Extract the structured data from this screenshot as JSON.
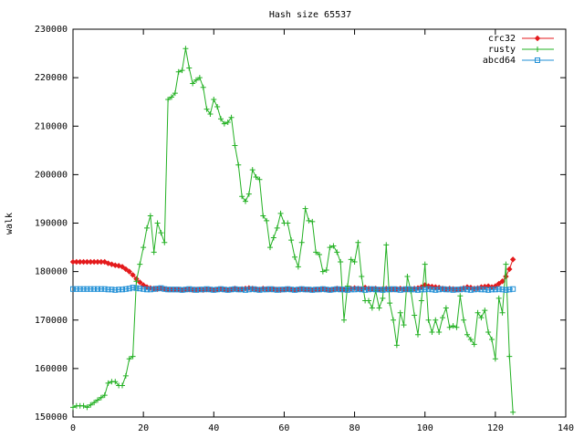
{
  "chart_data": {
    "type": "line",
    "title": "Hash size 65537",
    "y_label": "walk",
    "x": [
      0,
      1,
      2,
      3,
      4,
      5,
      6,
      7,
      8,
      9,
      10,
      11,
      12,
      13,
      14,
      15,
      16,
      17,
      18,
      19,
      20,
      21,
      22,
      23,
      24,
      25,
      26,
      27,
      28,
      29,
      30,
      31,
      32,
      33,
      34,
      35,
      36,
      37,
      38,
      39,
      40,
      41,
      42,
      43,
      44,
      45,
      46,
      47,
      48,
      49,
      50,
      51,
      52,
      53,
      54,
      55,
      56,
      57,
      58,
      59,
      60,
      61,
      62,
      63,
      64,
      65,
      66,
      67,
      68,
      69,
      70,
      71,
      72,
      73,
      74,
      75,
      76,
      77,
      78,
      79,
      80,
      81,
      82,
      83,
      84,
      85,
      86,
      87,
      88,
      89,
      90,
      91,
      92,
      93,
      94,
      95,
      96,
      97,
      98,
      99,
      100,
      101,
      102,
      103,
      104,
      105,
      106,
      107,
      108,
      109,
      110,
      111,
      112,
      113,
      114,
      115,
      116,
      117,
      118,
      119,
      120,
      121,
      122,
      123,
      124,
      125
    ],
    "series": [
      {
        "name": "crc32",
        "color": "#e41a1c",
        "marker": "diamond",
        "values": [
          182000,
          182000,
          182000,
          182000,
          182000,
          182000,
          182000,
          182000,
          182000,
          182000,
          181700,
          181500,
          181300,
          181200,
          181000,
          180500,
          180000,
          179300,
          178500,
          177800,
          177200,
          176800,
          176600,
          176500,
          176400,
          176500,
          176400,
          176300,
          176300,
          176300,
          176300,
          176200,
          176300,
          176300,
          176200,
          176300,
          176300,
          176200,
          176300,
          176300,
          176200,
          176300,
          176400,
          176300,
          176200,
          176300,
          176500,
          176300,
          176400,
          176500,
          176600,
          176500,
          176400,
          176300,
          176500,
          176400,
          176300,
          176400,
          176300,
          176200,
          176300,
          176400,
          176300,
          176200,
          176300,
          176400,
          176300,
          176300,
          176200,
          176300,
          176300,
          176400,
          176300,
          176200,
          176300,
          176500,
          176400,
          176300,
          176400,
          176500,
          176600,
          176500,
          176400,
          176700,
          176500,
          176400,
          176500,
          176300,
          176400,
          176500,
          176400,
          176300,
          176400,
          176500,
          176400,
          176300,
          176400,
          176500,
          176600,
          176800,
          177200,
          177000,
          176900,
          176800,
          176700,
          176500,
          176400,
          176500,
          176400,
          176300,
          176400,
          176600,
          176800,
          176700,
          176500,
          176600,
          176800,
          176900,
          177000,
          176800,
          177000,
          177500,
          178000,
          179000,
          180500,
          182500
        ]
      },
      {
        "name": "rusty",
        "color": "#22b022",
        "marker": "plus",
        "values": [
          152000,
          152300,
          152300,
          152300,
          152000,
          152500,
          153000,
          153500,
          154000,
          154500,
          157000,
          157300,
          157300,
          156500,
          156500,
          158500,
          162000,
          162500,
          178000,
          181500,
          185000,
          189000,
          191500,
          184000,
          190000,
          188000,
          186000,
          215500,
          216000,
          216800,
          221200,
          221500,
          226000,
          222000,
          218800,
          219500,
          220000,
          218000,
          213500,
          212500,
          215500,
          214000,
          211500,
          210500,
          210800,
          211800,
          206000,
          202000,
          195500,
          194500,
          196000,
          201000,
          199500,
          199000,
          191500,
          190500,
          185000,
          187000,
          189000,
          192000,
          190000,
          190000,
          186500,
          183000,
          181000,
          186000,
          193000,
          190500,
          190300,
          184000,
          183500,
          180000,
          180300,
          185000,
          185300,
          184000,
          182000,
          170000,
          177000,
          182500,
          182000,
          186000,
          179000,
          174000,
          174000,
          172500,
          176000,
          172500,
          174500,
          185500,
          173500,
          170000,
          164800,
          171500,
          169000,
          179000,
          176000,
          171000,
          167000,
          174000,
          181500,
          170000,
          167500,
          170000,
          167500,
          170500,
          172500,
          168500,
          168800,
          168500,
          175000,
          170000,
          167000,
          166000,
          165000,
          171500,
          170500,
          172000,
          167500,
          166000,
          162000,
          174500,
          171500,
          181500,
          162500,
          151000
        ]
      },
      {
        "name": "abcd64",
        "color": "#1f8fd6",
        "marker": "square",
        "values": [
          176400,
          176400,
          176400,
          176400,
          176400,
          176400,
          176400,
          176400,
          176400,
          176400,
          176300,
          176300,
          176200,
          176300,
          176300,
          176400,
          176500,
          176700,
          176600,
          176500,
          176400,
          176300,
          176300,
          176400,
          176500,
          176600,
          176400,
          176300,
          176300,
          176300,
          176300,
          176200,
          176300,
          176400,
          176300,
          176200,
          176300,
          176300,
          176400,
          176300,
          176200,
          176300,
          176400,
          176300,
          176200,
          176300,
          176400,
          176300,
          176300,
          176200,
          176300,
          176400,
          176300,
          176200,
          176300,
          176300,
          176400,
          176300,
          176200,
          176300,
          176300,
          176400,
          176300,
          176200,
          176300,
          176400,
          176300,
          176300,
          176200,
          176300,
          176300,
          176400,
          176300,
          176200,
          176300,
          176400,
          176300,
          176300,
          176200,
          176300,
          176300,
          176400,
          176300,
          176200,
          176300,
          176400,
          176300,
          176300,
          176200,
          176300,
          176300,
          176400,
          176300,
          176200,
          176300,
          176400,
          176300,
          176300,
          176200,
          176300,
          176300,
          176400,
          176300,
          176200,
          176300,
          176400,
          176300,
          176300,
          176200,
          176300,
          176300,
          176400,
          176300,
          176200,
          176300,
          176400,
          176300,
          176300,
          176200,
          176300,
          176300,
          176400,
          176300,
          176200,
          176300,
          176400
        ]
      }
    ],
    "xlim": [
      0,
      140
    ],
    "xticks": [
      0,
      20,
      40,
      60,
      80,
      100,
      120,
      140
    ],
    "ylim": [
      150000,
      230000
    ],
    "yticks": [
      150000,
      160000,
      170000,
      180000,
      190000,
      200000,
      210000,
      220000,
      230000
    ],
    "legend": "top-right",
    "grid": false
  }
}
